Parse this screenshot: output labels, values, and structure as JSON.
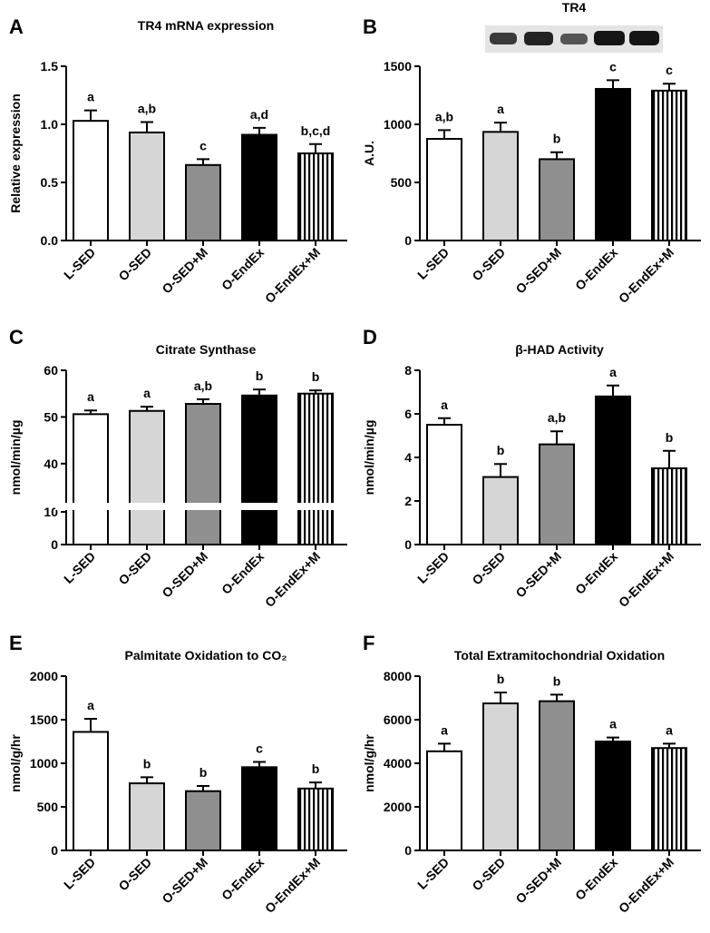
{
  "chart_data": [
    {
      "type": "bar",
      "panel": "A",
      "title": "TR4 mRNA expression",
      "y_label": "Relative expression",
      "categories": [
        "L-SED",
        "O-SED",
        "O-SED+M",
        "O-EndEx",
        "O-EndEx+M"
      ],
      "values": [
        1.03,
        0.93,
        0.65,
        0.91,
        0.75
      ],
      "errors": [
        0.09,
        0.09,
        0.05,
        0.06,
        0.08
      ],
      "annotations": [
        "a",
        "a,b",
        "c",
        "a,d",
        "b,c,d"
      ],
      "bar_styles": [
        "white",
        "light-gray",
        "gray",
        "black",
        "vertical-stripes"
      ],
      "ylim": [
        0,
        1.5
      ],
      "yticks": [
        {
          "value": 0,
          "label": "0.0"
        },
        0.5,
        {
          "value": 1,
          "label": "1.0"
        },
        1.5
      ]
    },
    {
      "type": "bar",
      "panel": "B",
      "title": "TR4",
      "y_label": "A.U.",
      "categories": [
        "L-SED",
        "O-SED",
        "O-SED+M",
        "O-EndEx",
        "O-EndEx+M"
      ],
      "values": [
        875,
        935,
        700,
        1305,
        1290
      ],
      "errors": [
        75,
        80,
        60,
        75,
        60
      ],
      "annotations": [
        "a,b",
        "a",
        "b",
        "c",
        "c"
      ],
      "bar_styles": [
        "white",
        "light-gray",
        "gray",
        "black",
        "vertical-stripes"
      ],
      "ylim": [
        0,
        1500
      ],
      "yticks": [
        0,
        500,
        1000,
        1500
      ]
    },
    {
      "type": "broken-bar",
      "panel": "C",
      "title": "Citrate Synthase",
      "y_label": "nmol/min/µg",
      "categories": [
        "L-SED",
        "O-SED",
        "O-SED+M",
        "O-EndEx",
        "O-EndEx+M"
      ],
      "values": [
        50.6,
        51.3,
        52.8,
        54.6,
        55.0
      ],
      "errors": [
        0.8,
        0.9,
        1.0,
        1.3,
        0.7
      ],
      "annotations": [
        "a",
        "a",
        "a,b",
        "b",
        "b"
      ],
      "bar_styles": [
        "white",
        "light-gray",
        "gray",
        "black",
        "vertical-stripes"
      ],
      "y_segments": [
        {
          "ylim": [
            0,
            10
          ],
          "yticks": [
            0,
            10
          ]
        },
        {
          "ylim": [
            32,
            60
          ],
          "yticks": [
            40,
            50,
            60
          ]
        }
      ]
    },
    {
      "type": "bar",
      "panel": "D",
      "title": "β-HAD Activity",
      "y_label": "nmol/min/µg",
      "categories": [
        "L-SED",
        "O-SED",
        "O-SED+M",
        "O-EndEx",
        "O-EndEx+M"
      ],
      "values": [
        5.5,
        3.1,
        4.6,
        6.8,
        3.5
      ],
      "errors": [
        0.3,
        0.6,
        0.6,
        0.5,
        0.8
      ],
      "annotations": [
        "a",
        "b",
        "a,b",
        "a",
        "b"
      ],
      "bar_styles": [
        "white",
        "light-gray",
        "gray",
        "black",
        "vertical-stripes"
      ],
      "ylim": [
        0,
        8
      ],
      "yticks": [
        0,
        2,
        4,
        6,
        8
      ]
    },
    {
      "type": "bar",
      "panel": "E",
      "title": "Palmitate Oxidation to CO₂",
      "y_label": "nmol/g/hr",
      "categories": [
        "L-SED",
        "O-SED",
        "O-SED+M",
        "O-EndEx",
        "O-EndEx+M"
      ],
      "values": [
        1360,
        770,
        680,
        955,
        710
      ],
      "errors": [
        150,
        70,
        60,
        60,
        70
      ],
      "annotations": [
        "a",
        "b",
        "b",
        "c",
        "b"
      ],
      "bar_styles": [
        "white",
        "light-gray",
        "gray",
        "black",
        "vertical-stripes"
      ],
      "ylim": [
        0,
        2000
      ],
      "yticks": [
        0,
        500,
        1000,
        1500,
        2000
      ]
    },
    {
      "type": "bar",
      "panel": "F",
      "title": "Total Extramitochondrial Oxidation",
      "y_label": "nmol/g/hr",
      "categories": [
        "L-SED",
        "O-SED",
        "O-SED+M",
        "O-EndEx",
        "O-EndEx+M"
      ],
      "values": [
        4550,
        6750,
        6850,
        5000,
        4700
      ],
      "errors": [
        350,
        500,
        300,
        180,
        200
      ],
      "annotations": [
        "a",
        "b",
        "b",
        "a",
        "a"
      ],
      "bar_styles": [
        "white",
        "light-gray",
        "gray",
        "black",
        "vertical-stripes"
      ],
      "ylim": [
        0,
        8000
      ],
      "yticks": [
        0,
        2000,
        4000,
        6000,
        8000
      ]
    }
  ]
}
